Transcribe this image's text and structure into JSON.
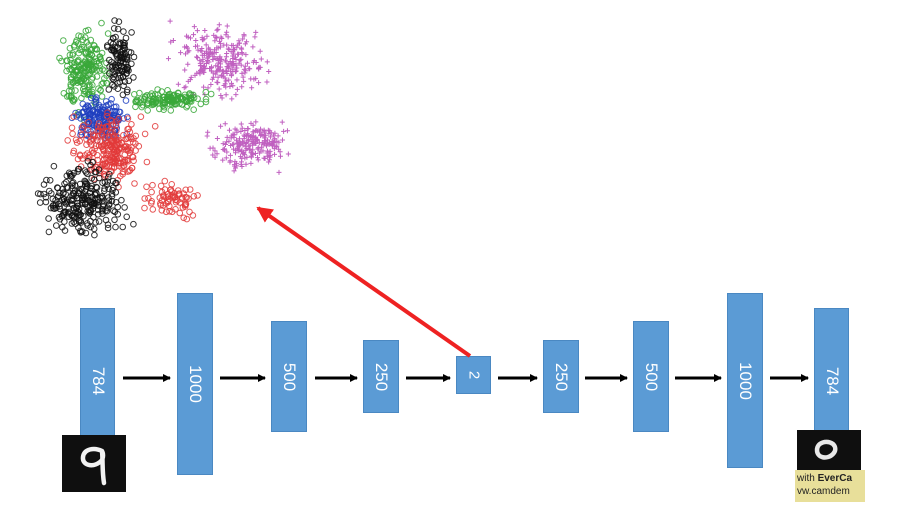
{
  "encoder_layers": [
    {
      "label": "784"
    },
    {
      "label": "1000"
    },
    {
      "label": "500"
    },
    {
      "label": "250"
    }
  ],
  "bottleneck": {
    "label": "2"
  },
  "decoder_layers": [
    {
      "label": "250"
    },
    {
      "label": "500"
    },
    {
      "label": "1000"
    },
    {
      "label": "784"
    }
  ],
  "input_digit": {
    "depicts": "handwritten digit 9"
  },
  "output_digit": {
    "depicts": "reconstructed digit"
  },
  "scatter_plot": {
    "classes": [
      {
        "color": "#e23a3a",
        "marker": "circle"
      },
      {
        "color": "#2040c0",
        "marker": "circle"
      },
      {
        "color": "#3aa83a",
        "marker": "circle"
      },
      {
        "color": "#111111",
        "marker": "circle"
      },
      {
        "color": "#c060c0",
        "marker": "plus"
      }
    ]
  },
  "arrow_color": "#ee2222",
  "layer_color": "#5b9bd5",
  "watermark": {
    "line1_prefix": "with ",
    "line1_brand": "EverCa",
    "line2": "vw.camdem"
  }
}
